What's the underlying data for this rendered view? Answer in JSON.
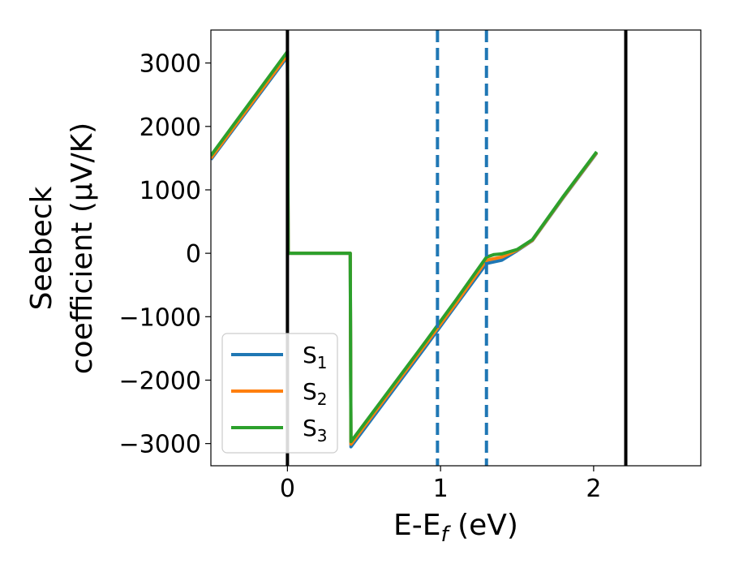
{
  "chart_data": {
    "type": "line",
    "title": "",
    "xlabel": {
      "main": "E-E",
      "sub": "f",
      "tail": " (eV)"
    },
    "ylabel": {
      "line1": "Seebeck",
      "line2": "coefficient  (μV/K)"
    },
    "xlim": [
      -0.5,
      2.7
    ],
    "ylim": [
      -3350,
      3520
    ],
    "grid": false,
    "legend_position": "lower-left",
    "x_ticks": [
      {
        "value": 0,
        "label": "0"
      },
      {
        "value": 1,
        "label": "1"
      },
      {
        "value": 2,
        "label": "2"
      }
    ],
    "y_ticks": [
      {
        "value": 3000,
        "label": "3000"
      },
      {
        "value": 2000,
        "label": "2000"
      },
      {
        "value": 1000,
        "label": "1000"
      },
      {
        "value": 0,
        "label": "0"
      },
      {
        "value": -1000,
        "label": "−1000"
      },
      {
        "value": -2000,
        "label": "−2000"
      },
      {
        "value": -3000,
        "label": "−3000"
      }
    ],
    "vertical_lines": [
      {
        "x": 0,
        "color": "#000000",
        "style": "solid"
      },
      {
        "x": 0.98,
        "color": "#1f77b4",
        "style": "dashed"
      },
      {
        "x": 1.3,
        "color": "#1f77b4",
        "style": "dashed"
      },
      {
        "x": 2.21,
        "color": "#000000",
        "style": "solid"
      }
    ],
    "series": [
      {
        "name": "S",
        "sub": "1",
        "color": "#1f77b4",
        "x": [
          -0.5,
          0.0,
          0.005,
          0.41,
          0.415,
          0.9,
          1.1,
          1.3,
          1.4,
          1.5,
          1.6,
          1.8,
          2.02
        ],
        "y": [
          1480,
          3100,
          0,
          0,
          -3050,
          -1480,
          -820,
          -160,
          -110,
          40,
          200,
          870,
          1580
        ]
      },
      {
        "name": "S",
        "sub": "2",
        "color": "#ff7f0e",
        "x": [
          -0.5,
          0.0,
          0.005,
          0.41,
          0.415,
          0.9,
          1.1,
          1.3,
          1.4,
          1.5,
          1.6,
          1.8,
          2.02
        ],
        "y": [
          1500,
          3130,
          0,
          0,
          -3010,
          -1440,
          -790,
          -110,
          -60,
          50,
          205,
          880,
          1590
        ]
      },
      {
        "name": "S",
        "sub": "3",
        "color": "#2ca02c",
        "x": [
          -0.5,
          0.0,
          0.005,
          0.41,
          0.415,
          0.9,
          1.1,
          1.3,
          1.35,
          1.4,
          1.5,
          1.6,
          1.8,
          2.02
        ],
        "y": [
          1540,
          3180,
          0,
          0,
          -2970,
          -1400,
          -740,
          -60,
          -20,
          -10,
          60,
          215,
          890,
          1600
        ]
      }
    ]
  }
}
